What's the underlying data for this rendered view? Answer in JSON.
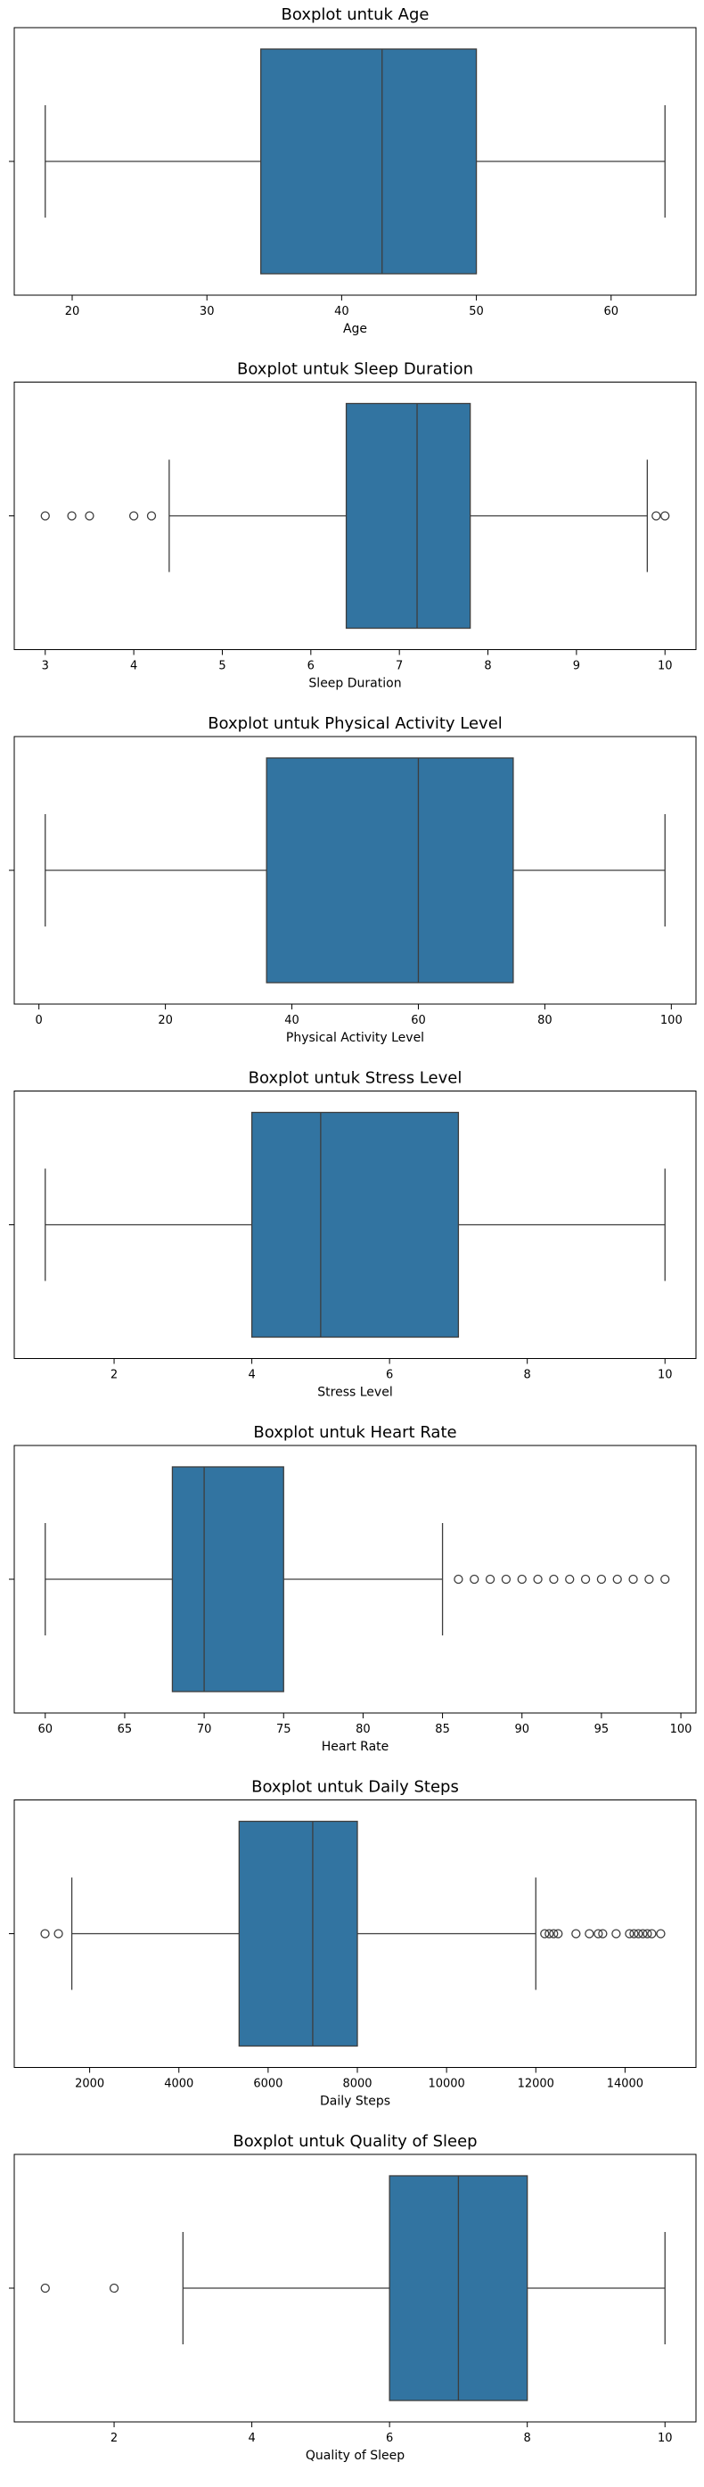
{
  "chart_data": [
    {
      "type": "boxplot",
      "title": "Boxplot untuk Age",
      "xlabel": "Age",
      "xlim": [
        15.7,
        66.3
      ],
      "xticks": [
        20,
        30,
        40,
        50,
        60
      ],
      "whisker_low": 18,
      "q1": 34,
      "median": 43,
      "q3": 50,
      "whisker_high": 64,
      "outliers": [],
      "color": "#3274a1"
    },
    {
      "type": "boxplot",
      "title": "Boxplot untuk Sleep Duration",
      "xlabel": "Sleep Duration",
      "xlim": [
        2.65,
        10.35
      ],
      "xticks": [
        3,
        4,
        5,
        6,
        7,
        8,
        9,
        10
      ],
      "whisker_low": 4.4,
      "q1": 6.4,
      "median": 7.2,
      "q3": 7.8,
      "whisker_high": 9.8,
      "outliers": [
        3.0,
        3.3,
        3.5,
        4.0,
        4.2,
        9.9,
        10.0
      ],
      "color": "#3274a1"
    },
    {
      "type": "boxplot",
      "title": "Boxplot untuk Physical Activity Level",
      "xlabel": "Physical Activity Level",
      "xlim": [
        -3.9,
        103.9
      ],
      "xticks": [
        0,
        20,
        40,
        60,
        80,
        100
      ],
      "whisker_low": 1,
      "q1": 36,
      "median": 60,
      "q3": 75,
      "whisker_high": 99,
      "outliers": [],
      "color": "#3274a1"
    },
    {
      "type": "boxplot",
      "title": "Boxplot untuk Stress Level",
      "xlabel": "Stress Level",
      "xlim": [
        0.55,
        10.45
      ],
      "xticks": [
        2,
        4,
        6,
        8,
        10
      ],
      "whisker_low": 1,
      "q1": 4,
      "median": 5,
      "q3": 7,
      "whisker_high": 10,
      "outliers": [],
      "color": "#3274a1"
    },
    {
      "type": "boxplot",
      "title": "Boxplot untuk Heart Rate",
      "xlabel": "Heart Rate",
      "xlim": [
        58.05,
        100.95
      ],
      "xticks": [
        60,
        65,
        70,
        75,
        80,
        85,
        90,
        95,
        100
      ],
      "whisker_low": 60,
      "q1": 68,
      "median": 70,
      "q3": 75,
      "whisker_high": 85,
      "outliers": [
        86,
        87,
        88,
        89,
        90,
        91,
        92,
        93,
        94,
        95,
        96,
        97,
        98,
        99
      ],
      "color": "#3274a1"
    },
    {
      "type": "boxplot",
      "title": "Boxplot untuk Daily Steps",
      "xlabel": "Daily Steps",
      "xlim": [
        310,
        15590
      ],
      "xticks": [
        2000,
        4000,
        6000,
        8000,
        10000,
        12000,
        14000
      ],
      "whisker_low": 1600,
      "q1": 5350,
      "median": 7000,
      "q3": 8000,
      "whisker_high": 12000,
      "outliers": [
        1000,
        1300,
        12200,
        12300,
        12400,
        12500,
        12900,
        13200,
        13400,
        13500,
        13800,
        14100,
        14200,
        14300,
        14400,
        14500,
        14600,
        14800
      ],
      "color": "#3274a1"
    },
    {
      "type": "boxplot",
      "title": "Boxplot untuk Quality of Sleep",
      "xlabel": "Quality of Sleep",
      "xlim": [
        0.55,
        10.45
      ],
      "xticks": [
        2,
        4,
        6,
        8,
        10
      ],
      "whisker_low": 3,
      "q1": 6,
      "median": 7,
      "q3": 8,
      "whisker_high": 10,
      "outliers": [
        1,
        2
      ],
      "color": "#3274a1"
    }
  ]
}
